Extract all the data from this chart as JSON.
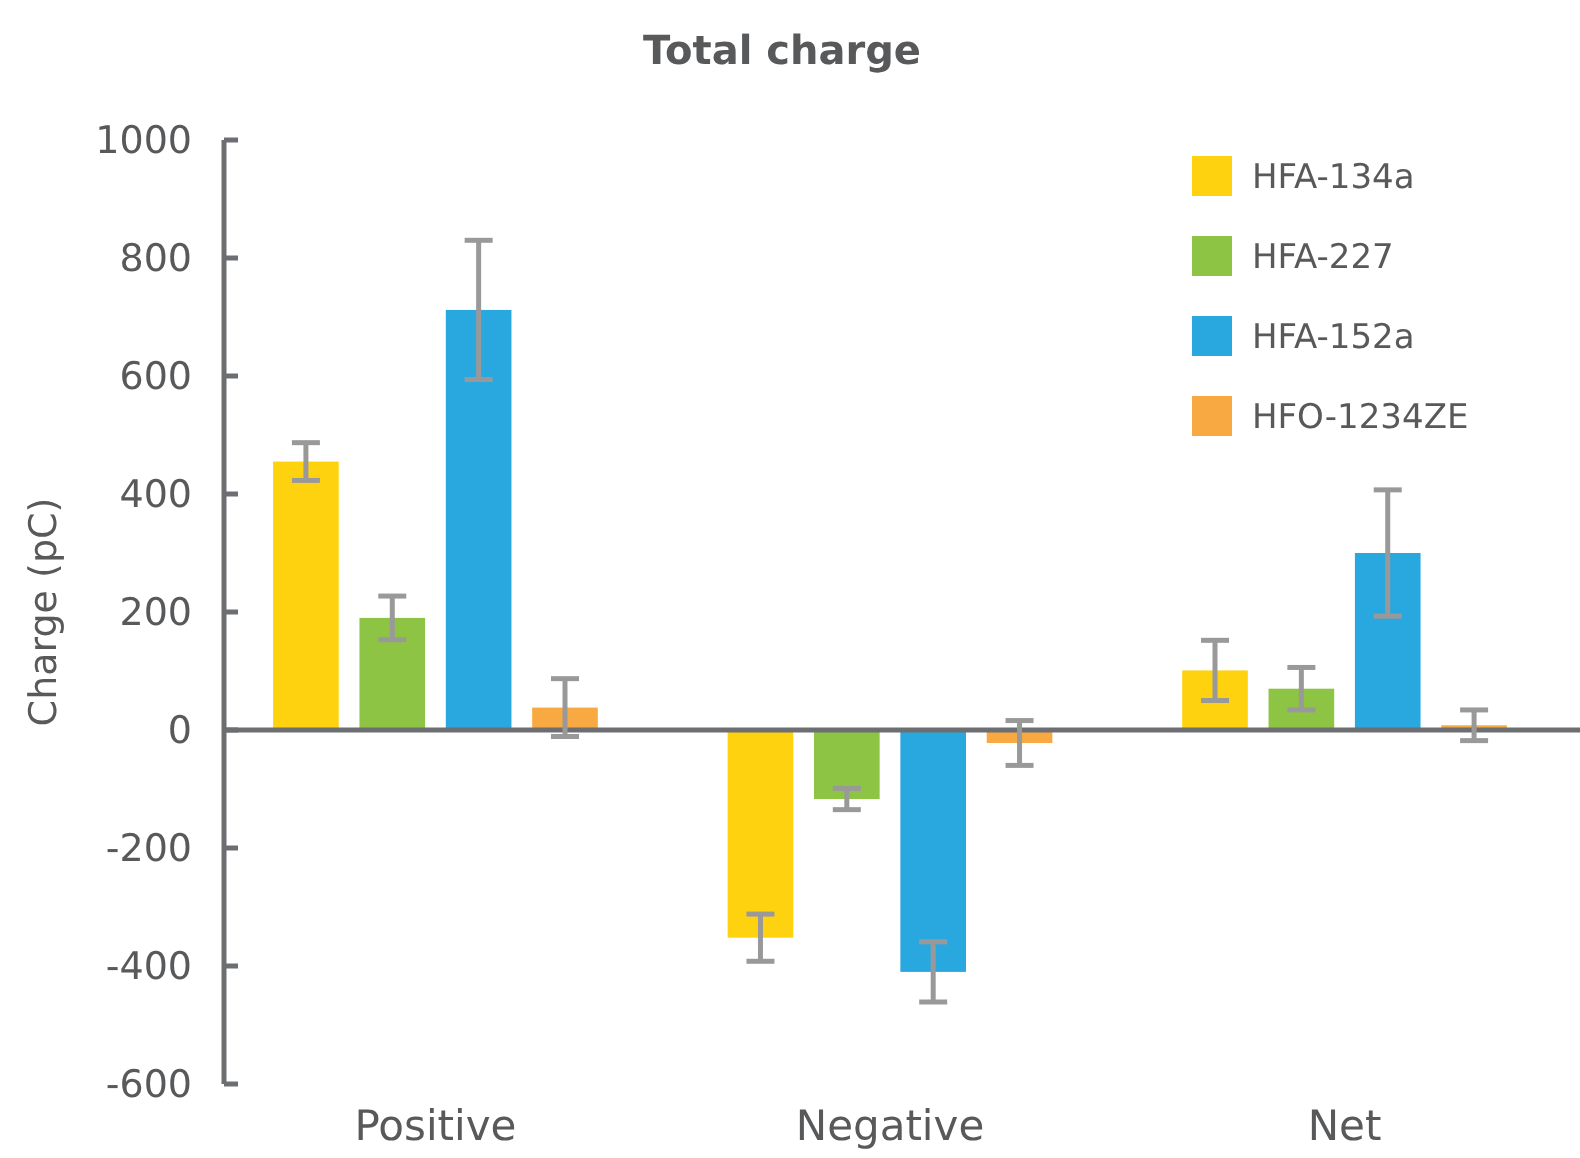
{
  "chart_data": {
    "type": "bar",
    "title": "Total charge",
    "ylabel": "Charge (pC)",
    "categories": [
      "Positive",
      "Negative",
      "Net"
    ],
    "series": [
      {
        "name": "HFA-134a",
        "color": "#ffd20f",
        "values": [
          455,
          -352,
          101
        ],
        "errors": [
          32,
          40,
          51
        ]
      },
      {
        "name": "HFA-227",
        "color": "#8dc444",
        "values": [
          190,
          -117,
          70
        ],
        "errors": [
          37,
          18,
          36
        ]
      },
      {
        "name": "HFA-152a",
        "color": "#29a8e0",
        "values": [
          712,
          -410,
          300
        ],
        "errors": [
          118,
          51,
          107
        ]
      },
      {
        "name": "HFO-1234ZE",
        "color": "#f9a942",
        "values": [
          38,
          -22,
          8
        ],
        "errors": [
          49,
          38,
          26
        ]
      }
    ],
    "ylim": [
      -600,
      1000
    ],
    "yticks": [
      -600,
      -400,
      -200,
      0,
      200,
      400,
      600,
      800,
      1000
    ],
    "legend": "top right"
  }
}
